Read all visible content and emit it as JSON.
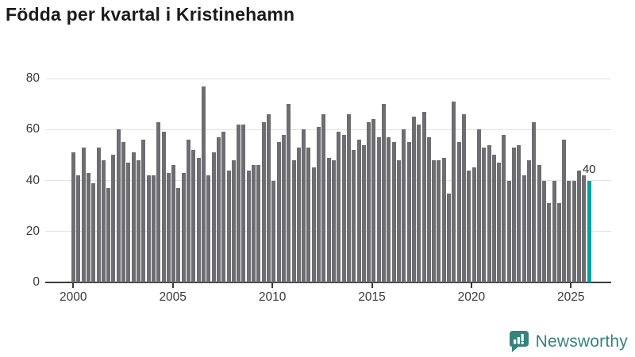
{
  "title": "Födda per kvartal i Kristinehamn",
  "branding": {
    "logo_text": "Newsworthy",
    "logo_icon": "bar-chart-speech-bubble-icon"
  },
  "colors": {
    "bar": "#6d6d72",
    "bar_highlight": "#00a2a2",
    "gridline": "#e3e3e3",
    "axis": "#3c3c3c",
    "tick_text": "#3a3a3a",
    "title_text": "#1b1b1b",
    "logo_teal": "#35837e"
  },
  "chart_data": {
    "type": "bar",
    "title": "Födda per kvartal i Kristinehamn",
    "xlabel": "",
    "ylabel": "",
    "ylim": [
      0,
      85
    ],
    "grid": true,
    "y_ticks": [
      0,
      20,
      40,
      60,
      80
    ],
    "x_tick_years": [
      2000,
      2005,
      2010,
      2015,
      2020,
      2025
    ],
    "x_tick_labels": [
      "2000",
      "2005",
      "2010",
      "2015",
      "2020",
      "2025"
    ],
    "highlight_last": true,
    "last_value_label": "40",
    "categories": [
      "2000K1",
      "2000K2",
      "2000K3",
      "2000K4",
      "2001K1",
      "2001K2",
      "2001K3",
      "2001K4",
      "2002K1",
      "2002K2",
      "2002K3",
      "2002K4",
      "2003K1",
      "2003K2",
      "2003K3",
      "2003K4",
      "2004K1",
      "2004K2",
      "2004K3",
      "2004K4",
      "2005K1",
      "2005K2",
      "2005K3",
      "2005K4",
      "2006K1",
      "2006K2",
      "2006K3",
      "2006K4",
      "2007K1",
      "2007K2",
      "2007K3",
      "2007K4",
      "2008K1",
      "2008K2",
      "2008K3",
      "2008K4",
      "2009K1",
      "2009K2",
      "2009K3",
      "2009K4",
      "2010K1",
      "2010K2",
      "2010K3",
      "2010K4",
      "2011K1",
      "2011K2",
      "2011K3",
      "2011K4",
      "2012K1",
      "2012K2",
      "2012K3",
      "2012K4",
      "2013K1",
      "2013K2",
      "2013K3",
      "2013K4",
      "2014K1",
      "2014K2",
      "2014K3",
      "2014K4",
      "2015K1",
      "2015K2",
      "2015K3",
      "2015K4",
      "2016K1",
      "2016K2",
      "2016K3",
      "2016K4",
      "2017K1",
      "2017K2",
      "2017K3",
      "2017K4",
      "2018K1",
      "2018K2",
      "2018K3",
      "2018K4",
      "2019K1",
      "2019K2",
      "2019K3",
      "2019K4",
      "2020K1",
      "2020K2",
      "2020K3",
      "2020K4",
      "2021K1",
      "2021K2",
      "2021K3",
      "2021K4",
      "2022K1",
      "2022K2",
      "2022K3",
      "2022K4",
      "2023K1",
      "2023K2",
      "2023K3",
      "2023K4",
      "2024K1",
      "2024K2",
      "2024K3",
      "2024K4",
      "2025K1",
      "2025K2",
      "2025K3",
      "2025K4"
    ],
    "values": [
      51,
      42,
      53,
      43,
      39,
      53,
      48,
      37,
      50,
      60,
      55,
      47,
      51,
      48,
      56,
      42,
      42,
      63,
      59,
      43,
      46,
      37,
      43,
      56,
      52,
      49,
      77,
      42,
      51,
      57,
      59,
      44,
      48,
      62,
      62,
      44,
      46,
      46,
      63,
      66,
      40,
      55,
      58,
      70,
      48,
      53,
      60,
      53,
      45,
      61,
      66,
      49,
      48,
      59,
      58,
      66,
      52,
      56,
      54,
      63,
      64,
      57,
      70,
      57,
      55,
      48,
      60,
      55,
      65,
      62,
      67,
      57,
      48,
      48,
      49,
      35,
      71,
      55,
      66,
      44,
      45,
      60,
      53,
      54,
      50,
      47,
      58,
      40,
      53,
      54,
      42,
      48,
      63,
      46,
      40,
      31,
      40,
      31,
      56,
      40,
      40,
      44,
      42,
      40
    ]
  }
}
